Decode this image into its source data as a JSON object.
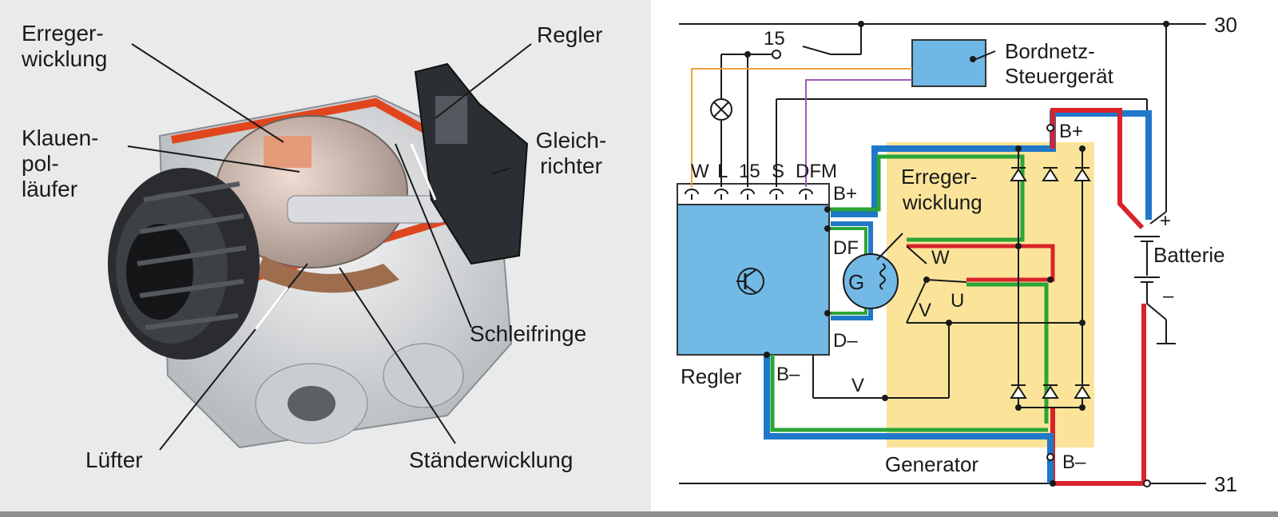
{
  "photo_labels": {
    "erregerwicklung": "Erreger-\nwicklung",
    "klauenpollaeufer": "Klauen-\npol-\nläufer",
    "luefter": "Lüfter",
    "regler": "Regler",
    "gleichrichter": "Gleich-\nrichter",
    "schleifringe": "Schleifringe",
    "staenderwicklung": "Ständerwicklung"
  },
  "schematic": {
    "terminal_30": "30",
    "terminal_31": "31",
    "switch_15": "15",
    "ecu_line1": "Bordnetz-",
    "ecu_line2": "Steuergerät",
    "pin_w": "W",
    "pin_l": "L",
    "pin_15": "15",
    "pin_s": "S",
    "pin_dfm": "DFM",
    "b_plus_regler": "B+",
    "b_plus_generator": "B+",
    "df": "DF",
    "d_minus": "D–",
    "regler": "Regler",
    "b_minus_regler": "B–",
    "v_line": "V",
    "field_line1": "Erreger-",
    "field_line2": "wicklung",
    "g": "G",
    "phase_w": "W",
    "phase_u": "U",
    "phase_v": "V",
    "generator": "Generator",
    "b_minus_generator": "B–",
    "battery": "Batterie",
    "plus": "+",
    "minus": "–"
  },
  "colors": {
    "regler_fill": "#72b9e6",
    "generator_fill": "#fbe49a",
    "ecu_fill": "#6fb8e6",
    "wire_red": "#d8232a",
    "wire_blue": "#1f78c8",
    "wire_green": "#2aa538",
    "wire_orange": "#f0a040",
    "wire_purple": "#a05ab4"
  }
}
